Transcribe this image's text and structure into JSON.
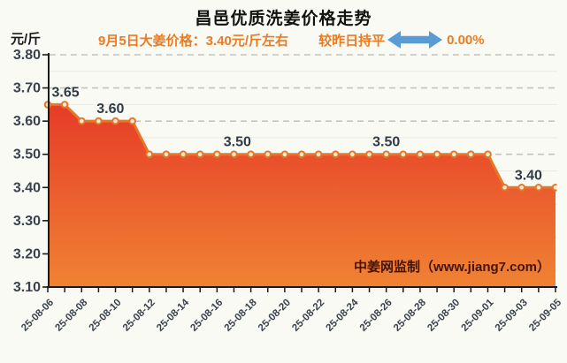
{
  "title": "昌邑优质洗姜价格走势",
  "y_unit": "元/斤",
  "subtitle": {
    "price_text": "9月5日大姜价格：3.40元/斤左右",
    "trend_text": "较昨日持平",
    "change_text": "0.00%"
  },
  "watermark": "中姜网监制（www.jiang7.com）",
  "colors": {
    "subtitle_orange": "#ec7b20",
    "arrow_blue": "#5b9bd5",
    "line_orange": "#e4772a",
    "marker_fill": "#f9ead2",
    "area_top_red": "#e63c28",
    "area_bottom_orange": "#f08233",
    "axis_black": "#1a1a1a",
    "major_grid": "#c4c4bd",
    "minor_grid": "#ebebe2",
    "tick_label_dark": "#39424e",
    "annotation_dark": "#313b47",
    "watermark_dark": "#42150a"
  },
  "chart_data": {
    "type": "area",
    "title": "昌邑优质洗姜价格走势",
    "ylabel": "元/斤",
    "xlabel": "",
    "ylim": [
      3.1,
      3.8
    ],
    "grid": "major 0.10 dashed, minor 0.05 solid",
    "legend_position": "none",
    "y_tick_labels": [
      "3.80",
      "3.70",
      "3.60",
      "3.50",
      "3.40",
      "3.30",
      "3.20",
      "3.10"
    ],
    "x": [
      "25-08-06",
      "25-08-07",
      "25-08-08",
      "25-08-09",
      "25-08-10",
      "25-08-11",
      "25-08-12",
      "25-08-13",
      "25-08-14",
      "25-08-15",
      "25-08-16",
      "25-08-17",
      "25-08-18",
      "25-08-19",
      "25-08-20",
      "25-08-21",
      "25-08-22",
      "25-08-23",
      "25-08-24",
      "25-08-25",
      "25-08-26",
      "25-08-27",
      "25-08-28",
      "25-08-29",
      "25-08-30",
      "25-08-31",
      "25-09-01",
      "25-09-02",
      "25-09-03",
      "25-09-04",
      "25-09-05"
    ],
    "values": [
      3.65,
      3.65,
      3.6,
      3.6,
      3.6,
      3.6,
      3.5,
      3.5,
      3.5,
      3.5,
      3.5,
      3.5,
      3.5,
      3.5,
      3.5,
      3.5,
      3.5,
      3.5,
      3.5,
      3.5,
      3.5,
      3.5,
      3.5,
      3.5,
      3.5,
      3.5,
      3.5,
      3.4,
      3.4,
      3.4,
      3.4
    ],
    "x_label_every": 2,
    "annotations": [
      {
        "text": "3.65",
        "xi": 1.05,
        "v": 3.65
      },
      {
        "text": "3.60",
        "xi": 3.7,
        "v": 3.6
      },
      {
        "text": "3.50",
        "xi": 11.2,
        "v": 3.5
      },
      {
        "text": "3.50",
        "xi": 20.0,
        "v": 3.5
      },
      {
        "text": "3.40",
        "xi": 28.4,
        "v": 3.4
      }
    ]
  }
}
